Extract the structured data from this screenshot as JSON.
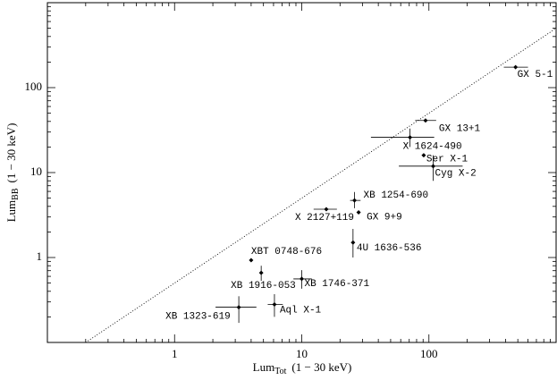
{
  "chart_data": {
    "type": "scatter",
    "xlog": true,
    "ylog": true,
    "xlabel": {
      "main": "Lum",
      "sub": "Tot",
      "rest": "(1 − 30 keV)"
    },
    "ylabel": {
      "main": "Lum",
      "sub": "BB",
      "rest": "(1 − 30 keV)"
    },
    "xlim": [
      0.1,
      1000
    ],
    "ylim": [
      0.1,
      1000
    ],
    "xticks": [
      1,
      10,
      100
    ],
    "yticks": [
      1,
      10,
      100
    ],
    "minor_ticks": true,
    "reference_line": {
      "x": [
        0.2,
        1000
      ],
      "y": [
        0.1,
        500
      ]
    },
    "color": "#000000",
    "names": [
      "GX 5-1",
      "GX 13+1",
      "X 1624-490",
      "Ser X-1",
      "Cyg X-2",
      "XB 1254-690",
      "GX 9+9",
      "X 2127+119",
      "4U 1636-536",
      "XBT 0748-676",
      "XB 1916-053",
      "XB 1746-371",
      "Aql X-1",
      "XB 1323-619"
    ],
    "x": [
      480,
      94,
      71,
      91,
      108,
      26,
      28,
      15.6,
      25.3,
      4.0,
      4.8,
      10,
      6.1,
      3.2
    ],
    "y": [
      174,
      41,
      26,
      16,
      11.9,
      4.7,
      3.4,
      3.7,
      1.5,
      0.93,
      0.66,
      0.56,
      0.28,
      0.26
    ],
    "xmin": [
      388,
      78,
      35,
      null,
      58,
      24,
      null,
      12.4,
      null,
      null,
      null,
      8.6,
      5.4,
      2.1
    ],
    "xmax": [
      601,
      114,
      110,
      null,
      184,
      29,
      null,
      18.9,
      null,
      null,
      null,
      12,
      7.1,
      4.4
    ],
    "ymin": [
      null,
      null,
      20,
      null,
      8,
      3.8,
      null,
      null,
      1.0,
      null,
      0.53,
      0.43,
      0.2,
      0.17
    ],
    "ymax": [
      null,
      null,
      33,
      null,
      16,
      5.9,
      null,
      null,
      2.17,
      null,
      0.8,
      0.71,
      0.37,
      0.35
    ]
  }
}
